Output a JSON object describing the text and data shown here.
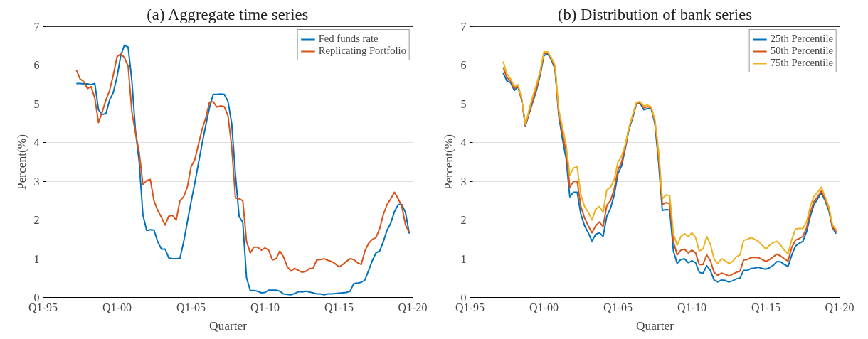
{
  "chart_data": [
    {
      "type": "line",
      "title": "(a) Aggregate time series",
      "xlabel": "Quarter",
      "ylabel": "Percent(%)",
      "x": [
        "1997-04",
        "1997-07",
        "1997-10",
        "1998-01",
        "1998-04",
        "1998-07",
        "1998-10",
        "1999-01",
        "1999-04",
        "1999-07",
        "1999-10",
        "2000-01",
        "2000-04",
        "2000-07",
        "2000-10",
        "2001-01",
        "2001-04",
        "2001-07",
        "2001-10",
        "2002-01",
        "2002-04",
        "2002-07",
        "2002-10",
        "2003-01",
        "2003-04",
        "2003-07",
        "2003-10",
        "2004-01",
        "2004-04",
        "2004-07",
        "2004-10",
        "2005-01",
        "2005-04",
        "2005-07",
        "2005-10",
        "2006-01",
        "2006-04",
        "2006-07",
        "2006-10",
        "2007-01",
        "2007-04",
        "2007-07",
        "2007-10",
        "2008-01",
        "2008-04",
        "2008-07",
        "2008-10",
        "2009-01",
        "2009-04",
        "2009-07",
        "2009-10",
        "2010-01",
        "2010-04",
        "2010-07",
        "2010-10",
        "2011-01",
        "2011-04",
        "2011-07",
        "2011-10",
        "2012-01",
        "2012-04",
        "2012-07",
        "2012-10",
        "2013-01",
        "2013-04",
        "2013-07",
        "2013-10",
        "2014-01",
        "2014-04",
        "2014-07",
        "2014-10",
        "2015-01",
        "2015-04",
        "2015-07",
        "2015-10",
        "2016-01",
        "2016-04",
        "2016-07",
        "2016-10",
        "2017-01",
        "2017-04",
        "2017-07",
        "2017-10",
        "2018-01",
        "2018-04",
        "2018-07",
        "2018-10",
        "2019-01",
        "2019-04",
        "2019-07",
        "2019-10"
      ],
      "series": [
        {
          "name": "Fed funds rate",
          "color": "#0072bd",
          "values": [
            5.53,
            5.53,
            5.52,
            5.52,
            5.5,
            5.53,
            4.85,
            4.73,
            4.75,
            5.1,
            5.3,
            5.7,
            6.25,
            6.52,
            6.47,
            5.6,
            4.3,
            3.5,
            2.13,
            1.73,
            1.75,
            1.74,
            1.44,
            1.25,
            1.25,
            1.02,
            1.0,
            1.0,
            1.01,
            1.43,
            1.95,
            2.47,
            2.94,
            3.46,
            3.98,
            4.46,
            4.91,
            5.25,
            5.25,
            5.26,
            5.25,
            5.07,
            4.5,
            3.18,
            2.09,
            1.94,
            0.51,
            0.18,
            0.18,
            0.16,
            0.12,
            0.13,
            0.19,
            0.19,
            0.19,
            0.16,
            0.09,
            0.08,
            0.07,
            0.1,
            0.15,
            0.14,
            0.16,
            0.14,
            0.12,
            0.09,
            0.09,
            0.07,
            0.09,
            0.09,
            0.1,
            0.11,
            0.12,
            0.13,
            0.16,
            0.36,
            0.37,
            0.39,
            0.45,
            0.7,
            0.95,
            1.15,
            1.2,
            1.45,
            1.74,
            1.92,
            2.22,
            2.4,
            2.4,
            2.19,
            1.65
          ]
        },
        {
          "name": "Replicating Portfolio",
          "color": "#d95319",
          "values": [
            5.88,
            5.65,
            5.58,
            5.4,
            5.45,
            5.15,
            4.52,
            4.8,
            5.1,
            5.35,
            5.75,
            6.22,
            6.3,
            6.2,
            5.98,
            4.8,
            4.25,
            3.75,
            2.92,
            3.02,
            3.05,
            2.5,
            2.25,
            2.07,
            1.87,
            2.1,
            2.12,
            2.0,
            2.5,
            2.6,
            2.85,
            3.38,
            3.55,
            3.95,
            4.35,
            4.65,
            5.05,
            5.06,
            4.92,
            4.95,
            4.93,
            4.7,
            3.9,
            2.57,
            2.55,
            2.5,
            1.45,
            1.15,
            1.3,
            1.3,
            1.22,
            1.28,
            1.22,
            0.97,
            1.0,
            1.2,
            1.05,
            0.8,
            0.68,
            0.75,
            0.7,
            0.65,
            0.67,
            0.75,
            0.75,
            0.97,
            0.98,
            1.0,
            0.96,
            0.93,
            0.87,
            0.79,
            0.85,
            0.93,
            1.0,
            0.98,
            0.9,
            0.85,
            1.2,
            1.4,
            1.5,
            1.55,
            1.78,
            2.15,
            2.4,
            2.55,
            2.72,
            2.55,
            2.35,
            1.87,
            1.68
          ]
        }
      ],
      "xlim": [
        "1995-01",
        "2020-01"
      ],
      "xticks": [
        {
          "value": "1995-01",
          "label": "Q1-95"
        },
        {
          "value": "2000-01",
          "label": "Q1-00"
        },
        {
          "value": "2005-01",
          "label": "Q1-05"
        },
        {
          "value": "2010-01",
          "label": "Q1-10"
        },
        {
          "value": "2015-01",
          "label": "Q1-15"
        },
        {
          "value": "2020-01",
          "label": "Q1-20"
        }
      ],
      "ylim": [
        0,
        7
      ],
      "yticks": [
        0,
        1,
        2,
        3,
        4,
        5,
        6,
        7
      ],
      "grid": true,
      "legend": "top right",
      "line_style": "solid",
      "marker": "none"
    },
    {
      "type": "line",
      "title": "(b) Distribution of bank series",
      "xlabel": "Quarter",
      "ylabel": "Percent(%)",
      "x": [
        "1997-04",
        "1997-07",
        "1997-10",
        "1998-01",
        "1998-04",
        "1998-07",
        "1998-10",
        "1999-01",
        "1999-04",
        "1999-07",
        "1999-10",
        "2000-01",
        "2000-04",
        "2000-07",
        "2000-10",
        "2001-01",
        "2001-04",
        "2001-07",
        "2001-10",
        "2002-01",
        "2002-04",
        "2002-07",
        "2002-10",
        "2003-01",
        "2003-04",
        "2003-07",
        "2003-10",
        "2004-01",
        "2004-04",
        "2004-07",
        "2004-10",
        "2005-01",
        "2005-04",
        "2005-07",
        "2005-10",
        "2006-01",
        "2006-04",
        "2006-07",
        "2006-10",
        "2007-01",
        "2007-04",
        "2007-07",
        "2007-10",
        "2008-01",
        "2008-04",
        "2008-07",
        "2008-10",
        "2009-01",
        "2009-04",
        "2009-07",
        "2009-10",
        "2010-01",
        "2010-04",
        "2010-07",
        "2010-10",
        "2011-01",
        "2011-04",
        "2011-07",
        "2011-10",
        "2012-01",
        "2012-04",
        "2012-07",
        "2012-10",
        "2013-01",
        "2013-04",
        "2013-07",
        "2013-10",
        "2014-01",
        "2014-04",
        "2014-07",
        "2014-10",
        "2015-01",
        "2015-04",
        "2015-07",
        "2015-10",
        "2016-01",
        "2016-04",
        "2016-07",
        "2016-10",
        "2017-01",
        "2017-04",
        "2017-07",
        "2017-10",
        "2018-01",
        "2018-04",
        "2018-07",
        "2018-10",
        "2019-01",
        "2019-04",
        "2019-07",
        "2019-10"
      ],
      "series": [
        {
          "name": "25th Percentile",
          "color": "#0072bd",
          "values": [
            5.8,
            5.6,
            5.55,
            5.35,
            5.45,
            5.1,
            4.43,
            4.75,
            5.05,
            5.35,
            5.75,
            6.25,
            6.3,
            6.15,
            5.9,
            4.7,
            4.1,
            3.6,
            2.6,
            2.72,
            2.72,
            2.15,
            1.85,
            1.67,
            1.46,
            1.63,
            1.67,
            1.58,
            2.1,
            2.3,
            2.65,
            3.2,
            3.4,
            3.85,
            4.35,
            4.65,
            5.0,
            5.02,
            4.85,
            4.88,
            4.88,
            4.5,
            3.5,
            2.25,
            2.27,
            2.26,
            1.2,
            0.88,
            0.98,
            1.0,
            0.9,
            0.95,
            0.9,
            0.65,
            0.62,
            0.82,
            0.7,
            0.45,
            0.4,
            0.45,
            0.44,
            0.4,
            0.43,
            0.48,
            0.5,
            0.7,
            0.7,
            0.75,
            0.76,
            0.78,
            0.75,
            0.73,
            0.77,
            0.83,
            0.93,
            0.92,
            0.85,
            0.8,
            1.1,
            1.33,
            1.4,
            1.45,
            1.7,
            2.1,
            2.4,
            2.55,
            2.7,
            2.5,
            2.25,
            1.8,
            1.65
          ]
        },
        {
          "name": "50th Percentile",
          "color": "#d95319",
          "values": [
            5.95,
            5.68,
            5.6,
            5.4,
            5.47,
            5.12,
            4.45,
            4.78,
            5.1,
            5.4,
            5.8,
            6.3,
            6.33,
            6.18,
            5.95,
            4.75,
            4.25,
            3.8,
            2.85,
            3.0,
            3.0,
            2.35,
            2.05,
            1.85,
            1.67,
            1.85,
            1.95,
            1.83,
            2.38,
            2.5,
            2.8,
            3.3,
            3.5,
            3.9,
            4.38,
            4.7,
            5.02,
            5.04,
            4.9,
            4.93,
            4.9,
            4.55,
            3.65,
            2.4,
            2.45,
            2.43,
            1.45,
            1.1,
            1.22,
            1.25,
            1.15,
            1.22,
            1.15,
            0.85,
            0.85,
            1.1,
            0.95,
            0.65,
            0.57,
            0.63,
            0.6,
            0.55,
            0.6,
            0.65,
            0.68,
            0.97,
            0.98,
            1.03,
            1.04,
            1.03,
            0.98,
            0.93,
            0.98,
            1.05,
            1.12,
            1.07,
            1.0,
            0.94,
            1.3,
            1.48,
            1.52,
            1.58,
            1.8,
            2.2,
            2.48,
            2.6,
            2.75,
            2.55,
            2.3,
            1.82,
            1.7
          ]
        },
        {
          "name": "75th Percentile",
          "color": "#edb120",
          "values": [
            6.1,
            5.78,
            5.65,
            5.45,
            5.5,
            5.15,
            4.47,
            4.85,
            5.2,
            5.5,
            5.85,
            6.35,
            6.35,
            6.2,
            6.0,
            4.85,
            4.4,
            3.95,
            3.15,
            3.35,
            3.37,
            2.65,
            2.35,
            2.2,
            2.0,
            2.28,
            2.35,
            2.2,
            2.78,
            2.85,
            3.05,
            3.5,
            3.65,
            3.95,
            4.4,
            4.72,
            5.04,
            5.06,
            4.95,
            4.97,
            4.92,
            4.6,
            3.8,
            2.55,
            2.65,
            2.63,
            1.65,
            1.35,
            1.57,
            1.65,
            1.57,
            1.67,
            1.55,
            1.2,
            1.25,
            1.57,
            1.38,
            1.0,
            0.88,
            1.0,
            0.95,
            0.88,
            0.93,
            1.05,
            1.1,
            1.48,
            1.5,
            1.55,
            1.5,
            1.45,
            1.35,
            1.25,
            1.35,
            1.42,
            1.45,
            1.35,
            1.22,
            1.13,
            1.5,
            1.77,
            1.78,
            1.78,
            1.95,
            2.35,
            2.62,
            2.72,
            2.85,
            2.6,
            2.35,
            1.88,
            1.75
          ]
        }
      ],
      "xlim": [
        "1995-01",
        "2020-01"
      ],
      "xticks": [
        {
          "value": "1995-01",
          "label": "Q1-95"
        },
        {
          "value": "2000-01",
          "label": "Q1-00"
        },
        {
          "value": "2005-01",
          "label": "Q1-05"
        },
        {
          "value": "2010-01",
          "label": "Q1-10"
        },
        {
          "value": "2015-01",
          "label": "Q1-15"
        },
        {
          "value": "2020-01",
          "label": "Q1-20"
        }
      ],
      "ylim": [
        0,
        7
      ],
      "yticks": [
        0,
        1,
        2,
        3,
        4,
        5,
        6,
        7
      ],
      "grid": true,
      "legend": "top right",
      "line_style": "solid",
      "marker": "none"
    }
  ]
}
